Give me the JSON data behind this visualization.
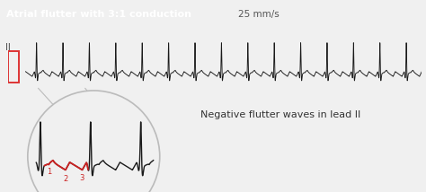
{
  "title": "Atrial flutter with 3:1 conduction",
  "speed_label": "25 mm/s",
  "lead_label": "II",
  "annotation_text": "Negative flutter waves in lead II",
  "header_bg": "#2d2d2d",
  "header_text_color": "#ffffff",
  "speed_text_color": "#555555",
  "ecg_color": "#1a1a1a",
  "red_color": "#cc2222",
  "background_color": "#f0f0f0",
  "cal_red": "#dd3333",
  "circle_color": "#bbbbbb",
  "label_color": "#cc2222"
}
